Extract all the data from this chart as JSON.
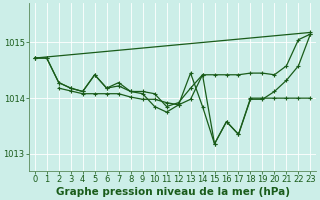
{
  "background_color": "#cceee8",
  "grid_color": "#aadddd",
  "line_color": "#1a5c1a",
  "xlabel": "Graphe pression niveau de la mer (hPa)",
  "xlabel_fontsize": 7.5,
  "tick_fontsize": 6,
  "xlim": [
    -0.5,
    23.5
  ],
  "ylim": [
    1012.7,
    1015.7
  ],
  "yticks": [
    1013,
    1014,
    1015
  ],
  "xticks": [
    0,
    1,
    2,
    3,
    4,
    5,
    6,
    7,
    8,
    9,
    10,
    11,
    12,
    13,
    14,
    15,
    16,
    17,
    18,
    19,
    20,
    21,
    22,
    23
  ],
  "series1_x": [
    0,
    1,
    2,
    3,
    4,
    5,
    6,
    7,
    8,
    9,
    10,
    11,
    12,
    13,
    14,
    15,
    16,
    17,
    18,
    19,
    20,
    21,
    22,
    23
  ],
  "series1_y": [
    1014.72,
    1014.72,
    1014.28,
    1014.18,
    1014.12,
    1014.42,
    1014.18,
    1014.22,
    1014.12,
    1014.08,
    1013.85,
    1013.75,
    1013.88,
    1014.45,
    1013.85,
    1013.18,
    1013.58,
    1013.35,
    1014.0,
    1014.0,
    1014.0,
    1014.0,
    1014.0,
    1014.0
  ],
  "series2_x": [
    0,
    1,
    2,
    3,
    4,
    5,
    6,
    7,
    8,
    9,
    10,
    11,
    12,
    13,
    14,
    15,
    16,
    17,
    18,
    19,
    20,
    21,
    22,
    23
  ],
  "series2_y": [
    1014.72,
    1014.72,
    1014.28,
    1014.18,
    1014.12,
    1014.42,
    1014.18,
    1014.28,
    1014.12,
    1014.12,
    1014.08,
    1013.85,
    1013.92,
    1014.18,
    1014.42,
    1014.42,
    1014.42,
    1014.42,
    1014.45,
    1014.45,
    1014.42,
    1014.58,
    1015.05,
    1015.15
  ],
  "series3_x": [
    2,
    3,
    4,
    5,
    6,
    7,
    8,
    9,
    10,
    11,
    12,
    13,
    14,
    15,
    16,
    17,
    18,
    19,
    20,
    21,
    22,
    23
  ],
  "series3_y": [
    1014.18,
    1014.13,
    1014.08,
    1014.08,
    1014.08,
    1014.08,
    1014.02,
    1013.98,
    1013.98,
    1013.92,
    1013.88,
    1013.98,
    1014.42,
    1013.18,
    1013.58,
    1013.35,
    1013.98,
    1013.98,
    1014.12,
    1014.32,
    1014.58,
    1015.15
  ],
  "series4_x": [
    0,
    23
  ],
  "series4_y": [
    1014.72,
    1015.18
  ]
}
